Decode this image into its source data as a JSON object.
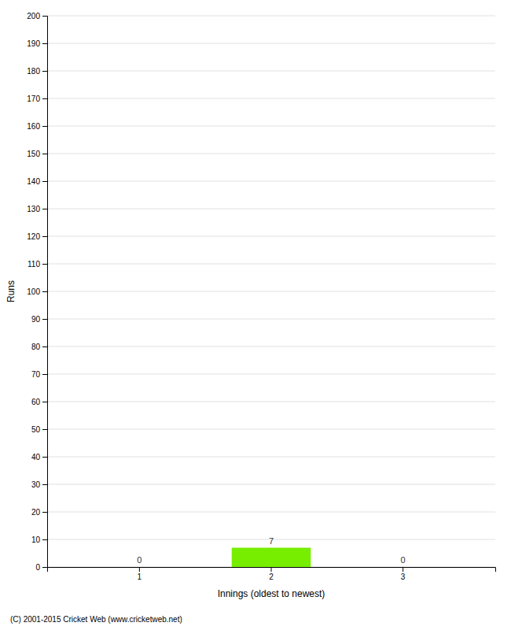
{
  "chart_data": {
    "type": "bar",
    "xlabel": "Innings (oldest to newest)",
    "ylabel": "Runs",
    "categories": [
      "1",
      "2",
      "3"
    ],
    "values": [
      0,
      7,
      0
    ],
    "color": "#77ee00",
    "ylim": [
      0,
      200
    ],
    "yticks": [
      0,
      10,
      20,
      30,
      40,
      50,
      60,
      70,
      80,
      90,
      100,
      110,
      120,
      130,
      140,
      150,
      160,
      170,
      180,
      190,
      200
    ],
    "grid": true,
    "data_labels": true,
    "annotations": [
      "(C) 2001-2015 Cricket Web (www.cricketweb.net)"
    ]
  }
}
